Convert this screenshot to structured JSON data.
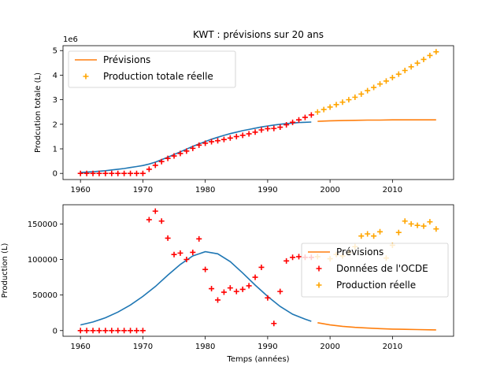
{
  "chart_data": [
    {
      "type": "line",
      "title": "KWT : prévisions sur 20 ans",
      "xlabel": "",
      "ylabel": "Prodcution totale (L)",
      "offset_label": "1e6",
      "xlim": [
        1957.2,
        2019.8
      ],
      "ylim": [
        -0.25,
        5.2
      ],
      "xticks": [
        1960,
        1970,
        1980,
        1990,
        2000,
        2010
      ],
      "xtick_labels": [
        "1960",
        "1970",
        "1980",
        "1990",
        "2000",
        "2010"
      ],
      "yticks": [
        0,
        1,
        2,
        3,
        4,
        5
      ],
      "ytick_labels": [
        "0",
        "1",
        "2",
        "3",
        "4",
        "5"
      ],
      "grid": false,
      "legend_position": "upper-left",
      "legend": [
        {
          "label": "Prévisions",
          "kind": "line",
          "color": "#ff7f0e"
        },
        {
          "label": "Production totale réelle",
          "kind": "plus",
          "color": "#ffa500"
        }
      ],
      "series": [
        {
          "kind": "line",
          "color": "#1f77b4",
          "x": [
            1960,
            1961,
            1962,
            1963,
            1964,
            1965,
            1966,
            1967,
            1968,
            1969,
            1970,
            1971,
            1972,
            1973,
            1974,
            1975,
            1976,
            1977,
            1978,
            1979,
            1980,
            1981,
            1982,
            1983,
            1984,
            1985,
            1986,
            1987,
            1988,
            1989,
            1990,
            1991,
            1992,
            1993,
            1994,
            1995,
            1996,
            1997
          ],
          "y": [
            0.04,
            0.05,
            0.07,
            0.09,
            0.11,
            0.14,
            0.17,
            0.2,
            0.24,
            0.28,
            0.32,
            0.38,
            0.46,
            0.56,
            0.66,
            0.77,
            0.88,
            0.99,
            1.1,
            1.2,
            1.3,
            1.39,
            1.47,
            1.55,
            1.62,
            1.68,
            1.74,
            1.79,
            1.84,
            1.89,
            1.93,
            1.97,
            2.0,
            2.03,
            2.05,
            2.07,
            2.08,
            2.09
          ]
        },
        {
          "name": "Prévisions",
          "kind": "line",
          "color": "#ff7f0e",
          "x": [
            1998,
            2000,
            2002,
            2004,
            2006,
            2008,
            2010,
            2012,
            2014,
            2016,
            2017
          ],
          "y": [
            2.12,
            2.14,
            2.15,
            2.16,
            2.17,
            2.17,
            2.18,
            2.18,
            2.18,
            2.18,
            2.18
          ]
        },
        {
          "kind": "plus",
          "color": "#ff0000",
          "x": [
            1960,
            1961,
            1962,
            1963,
            1964,
            1965,
            1966,
            1967,
            1968,
            1969,
            1970,
            1971,
            1972,
            1973,
            1974,
            1975,
            1976,
            1977,
            1978,
            1979,
            1980,
            1981,
            1982,
            1983,
            1984,
            1985,
            1986,
            1987,
            1988,
            1989,
            1990,
            1991,
            1992,
            1993,
            1994,
            1995,
            1996,
            1997
          ],
          "y": [
            0,
            0,
            0,
            0,
            0,
            0,
            0,
            0,
            0,
            0,
            0,
            0.17,
            0.33,
            0.48,
            0.61,
            0.71,
            0.81,
            0.91,
            1.02,
            1.15,
            1.23,
            1.29,
            1.33,
            1.38,
            1.44,
            1.5,
            1.55,
            1.61,
            1.68,
            1.77,
            1.82,
            1.83,
            1.88,
            1.98,
            2.08,
            2.18,
            2.28,
            2.38
          ]
        },
        {
          "name": "Production totale réelle",
          "kind": "plus",
          "color": "#ffa500",
          "x": [
            1998,
            1999,
            2000,
            2001,
            2002,
            2003,
            2004,
            2005,
            2006,
            2007,
            2008,
            2009,
            2010,
            2011,
            2012,
            2013,
            2014,
            2015,
            2016,
            2017
          ],
          "y": [
            2.5,
            2.6,
            2.7,
            2.8,
            2.9,
            3.0,
            3.1,
            3.23,
            3.37,
            3.5,
            3.64,
            3.76,
            3.9,
            4.04,
            4.19,
            4.34,
            4.49,
            4.64,
            4.8,
            4.95
          ]
        }
      ]
    },
    {
      "type": "line",
      "title": "",
      "xlabel": "Temps (années)",
      "ylabel": "Production (L)",
      "xlim": [
        1957.2,
        2019.8
      ],
      "ylim": [
        -8000,
        177000
      ],
      "xticks": [
        1960,
        1970,
        1980,
        1990,
        2000,
        2010
      ],
      "xtick_labels": [
        "1960",
        "1970",
        "1980",
        "1990",
        "2000",
        "2010"
      ],
      "yticks": [
        0,
        50000,
        100000,
        150000
      ],
      "ytick_labels": [
        "0",
        "50000",
        "100000",
        "150000"
      ],
      "grid": false,
      "legend_position": "center-right",
      "legend": [
        {
          "label": "Prévisions",
          "kind": "line",
          "color": "#ff7f0e"
        },
        {
          "label": "Données de l'OCDE",
          "kind": "plus",
          "color": "#ff0000"
        },
        {
          "label": "Production réelle",
          "kind": "plus",
          "color": "#ffa500"
        }
      ],
      "series": [
        {
          "kind": "line",
          "color": "#1f77b4",
          "x": [
            1960,
            1962,
            1964,
            1966,
            1968,
            1970,
            1972,
            1974,
            1976,
            1978,
            1980,
            1982,
            1984,
            1986,
            1988,
            1990,
            1992,
            1994,
            1996,
            1997
          ],
          "y": [
            8000,
            12000,
            18000,
            26000,
            36000,
            48000,
            62000,
            78000,
            93000,
            105000,
            111000,
            108000,
            97000,
            81000,
            64000,
            48000,
            34000,
            23000,
            16000,
            13000
          ]
        },
        {
          "name": "Prévisions",
          "kind": "line",
          "color": "#ff7f0e",
          "x": [
            1998,
            2000,
            2002,
            2004,
            2006,
            2008,
            2010,
            2012,
            2014,
            2016,
            2017
          ],
          "y": [
            11000,
            8000,
            6000,
            4500,
            3500,
            2700,
            2100,
            1700,
            1400,
            1100,
            1000
          ]
        },
        {
          "name": "Données de l'OCDE",
          "kind": "plus",
          "color": "#ff0000",
          "x": [
            1960,
            1961,
            1962,
            1963,
            1964,
            1965,
            1966,
            1967,
            1968,
            1969,
            1970,
            1971,
            1972,
            1973,
            1974,
            1975,
            1976,
            1977,
            1978,
            1979,
            1980,
            1981,
            1982,
            1983,
            1984,
            1985,
            1986,
            1987,
            1988,
            1989,
            1990,
            1991,
            1992,
            1993,
            1994,
            1995,
            1996,
            1997
          ],
          "y": [
            0,
            0,
            0,
            0,
            0,
            0,
            0,
            0,
            0,
            0,
            0,
            156000,
            168000,
            154000,
            130000,
            107000,
            109000,
            100000,
            110000,
            129000,
            86000,
            59000,
            43000,
            54000,
            60000,
            55000,
            58000,
            63000,
            75000,
            89000,
            46000,
            10000,
            55000,
            98000,
            103000,
            104000,
            103000,
            103000
          ]
        },
        {
          "name": "Production réelle",
          "kind": "plus",
          "color": "#ffa500",
          "x": [
            1998,
            2000,
            2001,
            2002,
            2003,
            2004,
            2005,
            2006,
            2007,
            2008,
            2009,
            2010,
            2011,
            2012,
            2013,
            2014,
            2015,
            2016,
            2017
          ],
          "y": [
            104000,
            101000,
            107000,
            105000,
            110000,
            118000,
            133000,
            136000,
            133000,
            139000,
            102000,
            120000,
            138000,
            154000,
            150000,
            148000,
            147000,
            153000,
            143000
          ]
        }
      ]
    }
  ]
}
